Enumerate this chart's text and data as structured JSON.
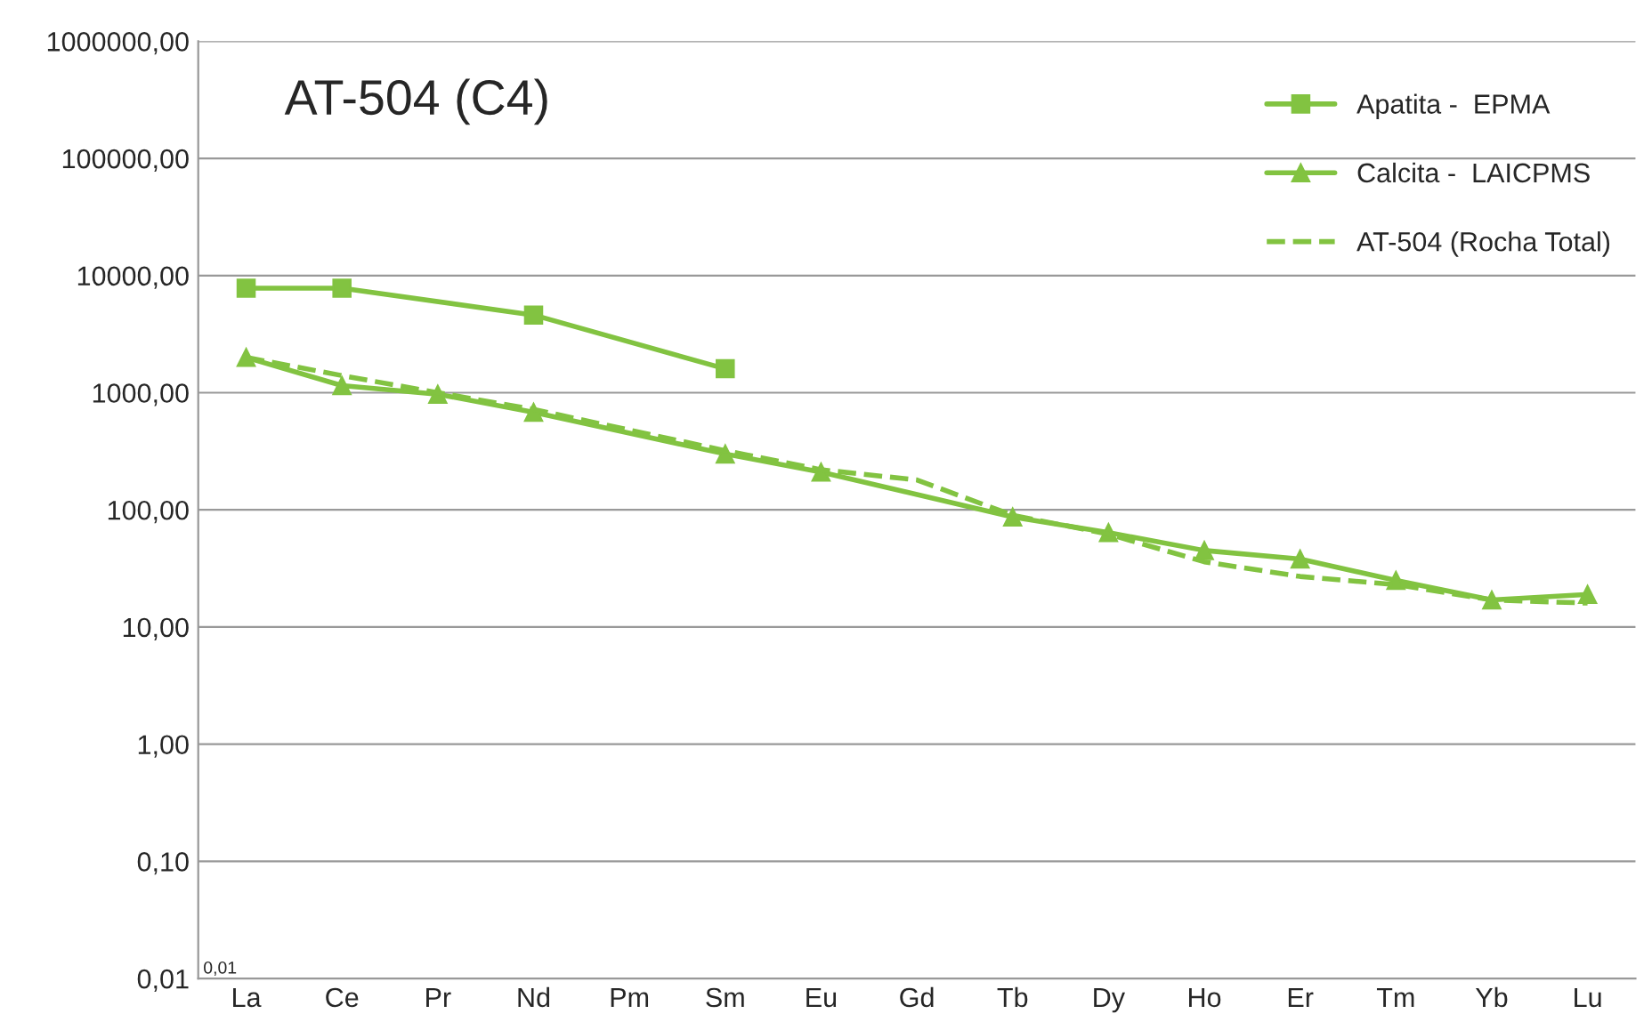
{
  "chart_data": {
    "type": "line",
    "title": "AT-504 (C4)",
    "categories": [
      "La",
      "Ce",
      "Pr",
      "Nd",
      "Pm",
      "Sm",
      "Eu",
      "Gd",
      "Tb",
      "Dy",
      "Ho",
      "Er",
      "Tm",
      "Yb",
      "Lu"
    ],
    "series": [
      {
        "name": "Apatita -  EPMA",
        "color": "#82c341",
        "marker": "square",
        "line_style": "solid",
        "values": [
          7800,
          7800,
          null,
          4600,
          null,
          1600,
          null,
          null,
          null,
          null,
          null,
          null,
          null,
          null,
          null
        ]
      },
      {
        "name": "Calcita -  LAICPMS",
        "color": "#82c341",
        "marker": "triangle",
        "line_style": "solid",
        "values": [
          2000,
          1150,
          970,
          680,
          null,
          300,
          210,
          null,
          87,
          64,
          45,
          38,
          25,
          17,
          19
        ]
      },
      {
        "name": "AT-504 (Rocha Total)",
        "color": "#82c341",
        "marker": "none",
        "line_style": "dashed",
        "values": [
          2000,
          1400,
          1000,
          720,
          480,
          320,
          220,
          180,
          90,
          62,
          36,
          27,
          23,
          17,
          16
        ]
      }
    ],
    "log": "y",
    "ylim": [
      0.01,
      1000000
    ],
    "yticks": [
      {
        "value": 0.01,
        "label": "0,01"
      },
      {
        "value": 0.1,
        "label": "0,10"
      },
      {
        "value": 1,
        "label": "1,00"
      },
      {
        "value": 10,
        "label": "10,00"
      },
      {
        "value": 100,
        "label": "100,00"
      },
      {
        "value": 1000,
        "label": "1000,00"
      },
      {
        "value": 10000,
        "label": "10000,00"
      },
      {
        "value": 100000,
        "label": "100000,00"
      },
      {
        "value": 1000000,
        "label": "1000000,00"
      }
    ],
    "annotations": [
      "0,01"
    ],
    "grid": "y",
    "legend": "top right"
  }
}
